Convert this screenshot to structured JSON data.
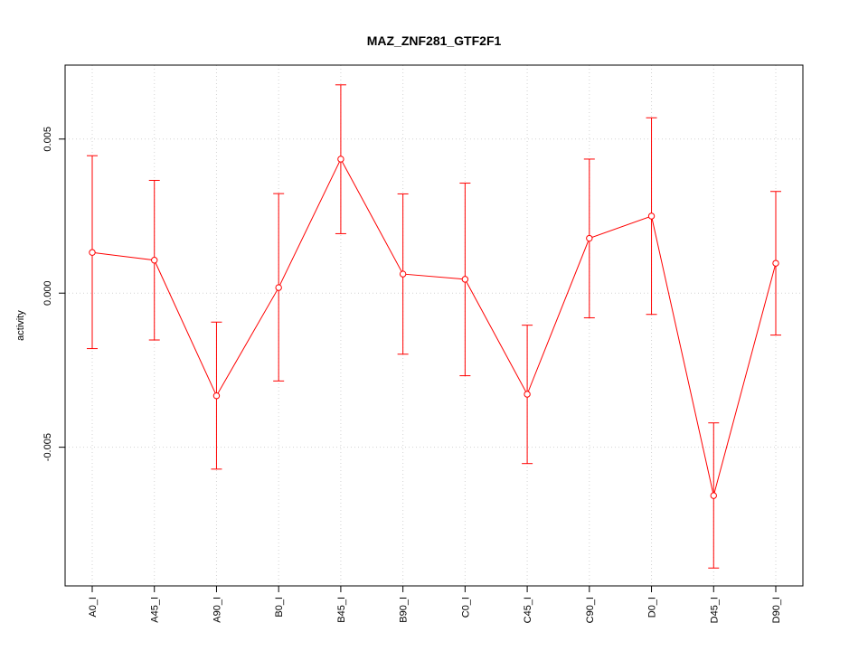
{
  "chart_data": {
    "type": "line",
    "title": "MAZ_ZNF281_GTF2F1",
    "xlabel": "",
    "ylabel": "activity",
    "categories": [
      "A0_I",
      "A45_I",
      "A90_I",
      "B0_I",
      "B45_I",
      "B90_I",
      "C0_I",
      "C45_I",
      "C90_I",
      "D0_I",
      "D45_I",
      "D90_I"
    ],
    "series": [
      {
        "values": [
          0.00132,
          0.00107,
          -0.00333,
          0.00018,
          0.00435,
          0.00062,
          0.00045,
          -0.00328,
          0.00178,
          0.0025,
          -0.00657,
          0.00097
        ],
        "lower": [
          -0.0018,
          -0.00152,
          -0.00571,
          -0.00285,
          0.00193,
          -0.00198,
          -0.00268,
          -0.00553,
          -0.0008,
          -0.00069,
          -0.00892,
          -0.00136
        ],
        "upper": [
          0.00446,
          0.00366,
          -0.00094,
          0.00323,
          0.00676,
          0.00322,
          0.00357,
          -0.00104,
          0.00435,
          0.00569,
          -0.00421,
          0.0033
        ]
      }
    ],
    "ylim": [
      -0.0095,
      0.0074
    ],
    "yticks": [
      -0.005,
      0.0,
      0.005
    ],
    "ytick_labels": [
      "-0.005",
      "0.000",
      "0.005"
    ],
    "grid": true,
    "colors": {
      "series": "#ff0000",
      "grid": "#d3d3d3",
      "axis": "#000000"
    }
  }
}
